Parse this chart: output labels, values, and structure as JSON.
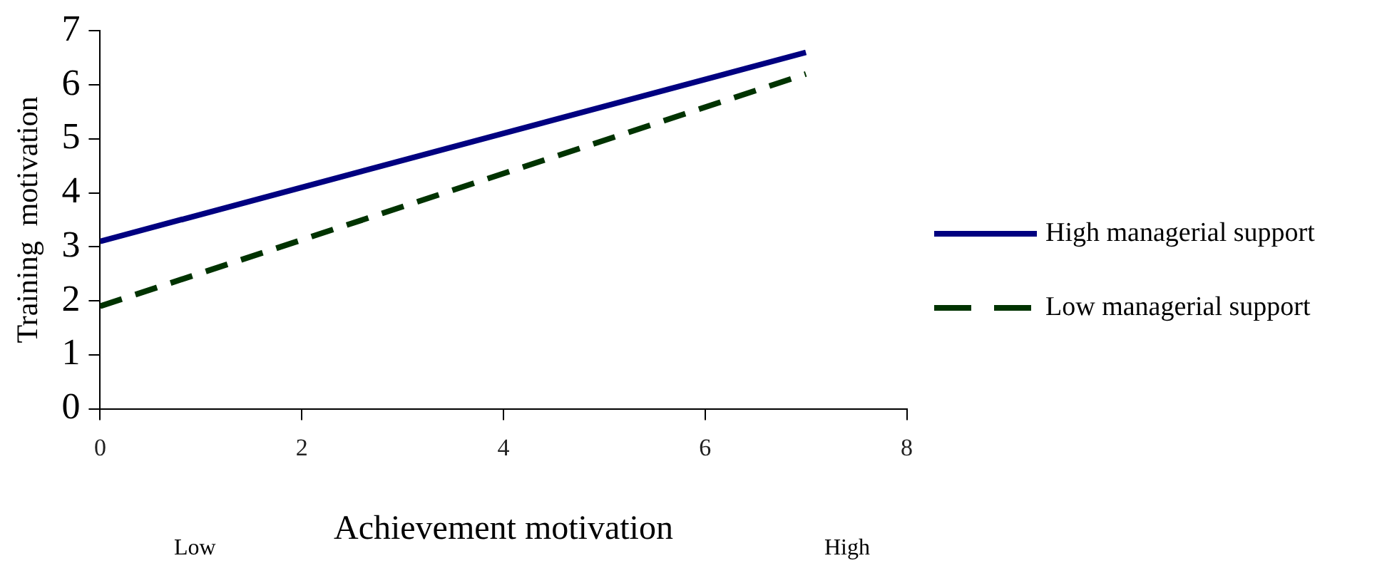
{
  "chart_data": {
    "type": "line",
    "xlabel": "Achievement motivation",
    "ylabel": "Training  motivation",
    "x": [
      0,
      7
    ],
    "series": [
      {
        "name": "High managerial support",
        "color": "#000080",
        "values": [
          3.1,
          6.6
        ],
        "line_style": "solid"
      },
      {
        "name": "Low managerial support",
        "color": "#003300",
        "values": [
          1.9,
          6.2
        ],
        "line_style": "dashed"
      }
    ],
    "xlim": [
      0,
      8
    ],
    "xticks": [
      0,
      2,
      4,
      6,
      8
    ],
    "ylim": [
      0,
      7
    ],
    "yticks": [
      0,
      1,
      2,
      3,
      4,
      5,
      6,
      7
    ],
    "grid": false,
    "legend": "right",
    "marker": "none",
    "annotations": [
      "Low",
      "High"
    ]
  }
}
